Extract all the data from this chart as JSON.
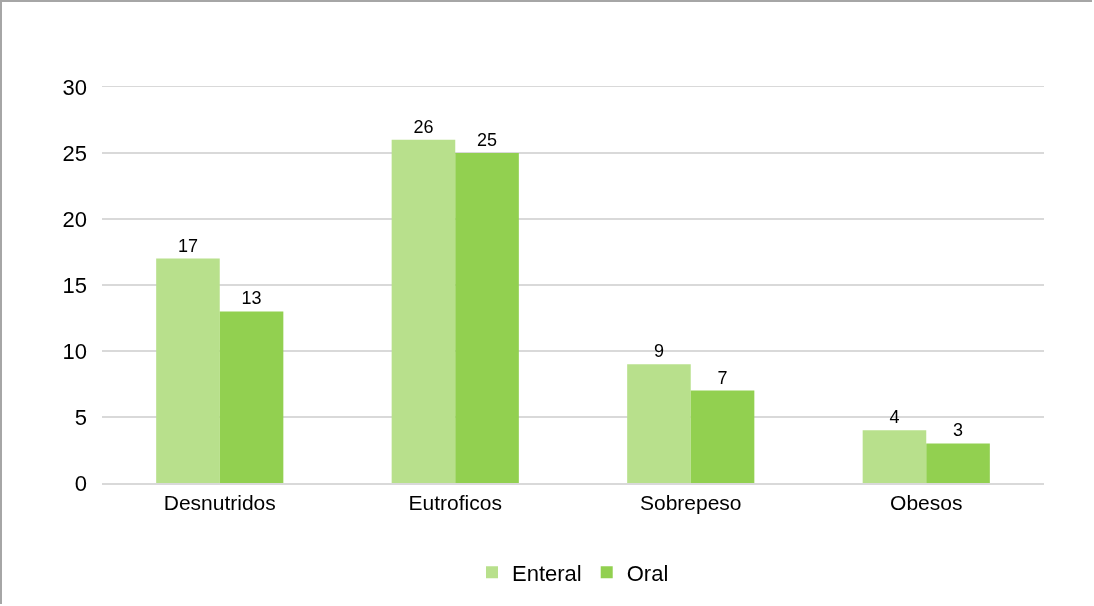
{
  "chart_data": {
    "type": "bar",
    "categories": [
      "Desnutridos",
      "Eutroficos",
      "Sobrepeso",
      "Obesos"
    ],
    "series": [
      {
        "name": "Enteral",
        "color": "#b8e08c",
        "values": [
          17,
          26,
          9,
          4
        ]
      },
      {
        "name": "Oral",
        "color": "#92d050",
        "values": [
          13,
          25,
          7,
          3
        ]
      }
    ],
    "ylim": [
      0,
      30
    ],
    "yticks": [
      0,
      5,
      10,
      15,
      20,
      25,
      30
    ],
    "grid": "y",
    "legend": "bottom",
    "data_labels": true
  }
}
